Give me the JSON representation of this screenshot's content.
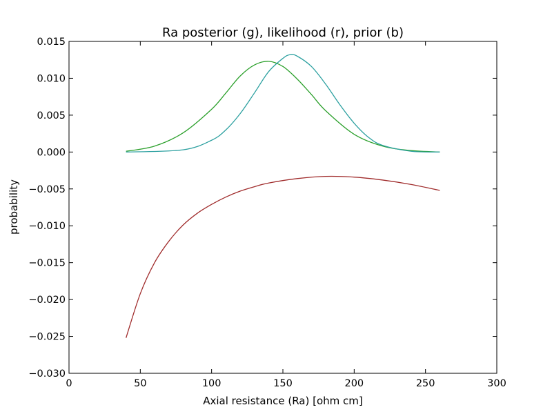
{
  "chart_data": {
    "type": "line",
    "title": "Ra posterior (g), likelihood (r), prior (b)",
    "xlabel": "Axial resistance (Ra) [ohm cm]",
    "ylabel": "probability",
    "xlim": [
      0,
      300
    ],
    "ylim": [
      -0.03,
      0.015
    ],
    "xticks": [
      0,
      50,
      100,
      150,
      200,
      250,
      300
    ],
    "xtick_labels": [
      "0",
      "50",
      "100",
      "150",
      "200",
      "250",
      "300"
    ],
    "yticks": [
      -0.03,
      -0.025,
      -0.02,
      -0.015,
      -0.01,
      -0.005,
      0.0,
      0.005,
      0.01,
      0.015
    ],
    "ytick_labels": [
      "−0.030",
      "−0.025",
      "−0.020",
      "−0.015",
      "−0.010",
      "−0.005",
      "0.000",
      "0.005",
      "0.010",
      "0.015"
    ],
    "grid": false,
    "series": [
      {
        "color": "#2ca02c",
        "x": [
          40,
          60,
          80,
          100,
          110,
          120,
          130,
          140,
          150,
          160,
          170,
          180,
          200,
          220,
          240,
          260
        ],
        "y": [
          0.0001,
          0.0008,
          0.0026,
          0.0058,
          0.008,
          0.0103,
          0.0118,
          0.0123,
          0.0116,
          0.0099,
          0.0078,
          0.0056,
          0.0024,
          0.0008,
          0.0002,
          0.0
        ]
      },
      {
        "color": "#a02c2c",
        "x": [
          40,
          50,
          60,
          70,
          80,
          90,
          100,
          110,
          120,
          130,
          140,
          160,
          180,
          200,
          220,
          240,
          260
        ],
        "y": [
          -0.0252,
          -0.0192,
          -0.015,
          -0.0121,
          -0.0099,
          -0.0083,
          -0.0071,
          -0.0061,
          -0.0053,
          -0.0047,
          -0.0042,
          -0.0036,
          -0.0033,
          -0.0034,
          -0.0038,
          -0.0044,
          -0.0052
        ]
      },
      {
        "color": "#2ca0a0",
        "x": [
          40,
          80,
          100,
          110,
          120,
          130,
          140,
          150,
          155,
          160,
          170,
          180,
          190,
          200,
          210,
          220,
          240,
          260
        ],
        "y": [
          0.0,
          0.0003,
          0.0016,
          0.003,
          0.0052,
          0.008,
          0.0109,
          0.0127,
          0.0132,
          0.013,
          0.0116,
          0.0092,
          0.0064,
          0.0039,
          0.002,
          0.0009,
          0.0001,
          0.0
        ]
      }
    ]
  }
}
